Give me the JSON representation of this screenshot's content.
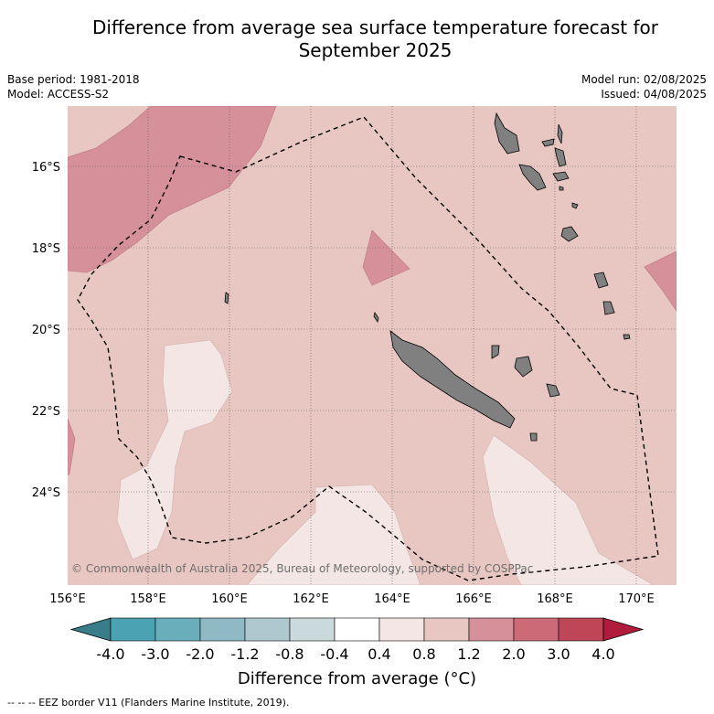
{
  "title_line1": "Difference from average sea surface temperature forecast for",
  "title_line2": "September 2025",
  "meta": {
    "base_period": "Base period: 1981-2018",
    "model": "Model: ACCESS-S2",
    "model_run": "Model run: 02/08/2025",
    "issued": "Issued: 04/08/2025"
  },
  "map": {
    "lat_labels": [
      "16°S",
      "18°S",
      "20°S",
      "22°S",
      "24°S"
    ],
    "lon_labels": [
      "156°E",
      "158°E",
      "160°E",
      "162°E",
      "164°E",
      "166°E",
      "168°E",
      "170°E"
    ],
    "copyright": "© Commonwealth of Australia 2025, Bureau of Meteorology, supported by COSPPac",
    "colors": {
      "anomaly_0.4_0.8": "#f3e6e4",
      "anomaly_0.8_1.2": "#e8c7c2",
      "anomaly_1.2_2.0": "#d6909a",
      "land": "#808080"
    }
  },
  "colorbar": {
    "ticks": [
      "-4.0",
      "-3.0",
      "-2.0",
      "-1.2",
      "-0.8",
      "-0.4",
      "0.4",
      "0.8",
      "1.2",
      "2.0",
      "3.0",
      "4.0"
    ],
    "colors": [
      "#3a7d8a",
      "#4aa2b2",
      "#6aaebb",
      "#8fb9c4",
      "#adc9cf",
      "#c9d9dc",
      "#ffffff",
      "#f3e6e4",
      "#e8c7c2",
      "#d6909a",
      "#cc6a78",
      "#bf4657",
      "#b01c3c"
    ],
    "title": "Difference from average (°C)"
  },
  "footnote": "--  --  -- EEZ border V11 (Flanders Marine Institute, 2019)."
}
